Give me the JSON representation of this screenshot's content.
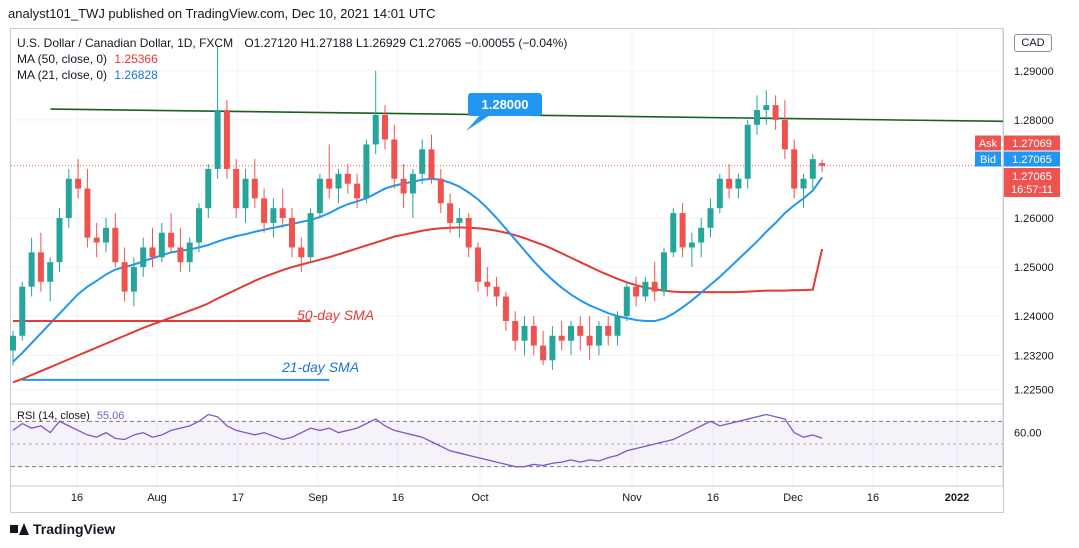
{
  "header": {
    "publisher_line": "analyst101_TWJ published on TradingView.com, Dec 10, 2021 14:01 UTC"
  },
  "legend": {
    "symbol": "U.S. Dollar / Canadian Dollar, 1D, FXCM",
    "ohlc": "O1.27120  H1.27188  L1.26929  C1.27065  −0.00055 (−0.04%)",
    "ma50_label": "MA (50, close, 0)",
    "ma50_value": "1.25366",
    "ma21_label": "MA (21, close, 0)",
    "ma21_value": "1.26828",
    "rsi_label": "RSI (14, close)",
    "rsi_value": "55.06"
  },
  "annotations": {
    "callout": "1.28000",
    "sma50": "50-day SMA",
    "sma21": "21-day SMA"
  },
  "price_axis": {
    "currency": "CAD",
    "ticks": [
      "1.29000",
      "1.28000",
      "1.26000",
      "1.25000",
      "1.24000",
      "1.23200",
      "1.22500"
    ],
    "ask_label": "Ask",
    "ask_value": "1.27069",
    "bid_label": "Bid",
    "bid_value": "1.27065",
    "last_value": "1.27065",
    "countdown": "16:57:11"
  },
  "rsi_axis": {
    "ticks": [
      "60.00"
    ]
  },
  "time_axis": {
    "ticks": [
      "16",
      "Aug",
      "17",
      "Sep",
      "16",
      "Oct",
      "Nov",
      "16",
      "Dec",
      "16",
      "2022"
    ]
  },
  "footer": {
    "brand": "TradingView"
  },
  "colors": {
    "up": "#26a69a",
    "down": "#ef5350",
    "ma50": "#e53935",
    "ma21": "#2196f3",
    "trendline": "#1b5e20",
    "rsi": "#7e57c2",
    "callout_bg": "#2196f3",
    "badge_blue": "#2196f3",
    "badge_red": "#ef5350"
  },
  "chart_data": {
    "type": "candlestick",
    "title": "U.S. Dollar / Canadian Dollar, 1D, FXCM",
    "price_range": [
      1.2225,
      1.2975
    ],
    "rsi_range": [
      20,
      80
    ],
    "candles": [
      {
        "o": 1.233,
        "h": 1.237,
        "l": 1.23,
        "c": 1.236
      },
      {
        "o": 1.236,
        "h": 1.247,
        "l": 1.235,
        "c": 1.246
      },
      {
        "o": 1.246,
        "h": 1.256,
        "l": 1.244,
        "c": 1.253
      },
      {
        "o": 1.253,
        "h": 1.257,
        "l": 1.245,
        "c": 1.247
      },
      {
        "o": 1.247,
        "h": 1.252,
        "l": 1.243,
        "c": 1.251
      },
      {
        "o": 1.251,
        "h": 1.262,
        "l": 1.249,
        "c": 1.26
      },
      {
        "o": 1.26,
        "h": 1.27,
        "l": 1.258,
        "c": 1.268
      },
      {
        "o": 1.268,
        "h": 1.272,
        "l": 1.264,
        "c": 1.266
      },
      {
        "o": 1.266,
        "h": 1.27,
        "l": 1.254,
        "c": 1.256
      },
      {
        "o": 1.256,
        "h": 1.259,
        "l": 1.252,
        "c": 1.255
      },
      {
        "o": 1.255,
        "h": 1.26,
        "l": 1.253,
        "c": 1.258
      },
      {
        "o": 1.258,
        "h": 1.261,
        "l": 1.25,
        "c": 1.251
      },
      {
        "o": 1.251,
        "h": 1.254,
        "l": 1.243,
        "c": 1.245
      },
      {
        "o": 1.245,
        "h": 1.252,
        "l": 1.242,
        "c": 1.25
      },
      {
        "o": 1.25,
        "h": 1.256,
        "l": 1.248,
        "c": 1.254
      },
      {
        "o": 1.254,
        "h": 1.258,
        "l": 1.25,
        "c": 1.252
      },
      {
        "o": 1.252,
        "h": 1.259,
        "l": 1.251,
        "c": 1.257
      },
      {
        "o": 1.257,
        "h": 1.261,
        "l": 1.253,
        "c": 1.254
      },
      {
        "o": 1.254,
        "h": 1.258,
        "l": 1.249,
        "c": 1.251
      },
      {
        "o": 1.251,
        "h": 1.256,
        "l": 1.249,
        "c": 1.255
      },
      {
        "o": 1.255,
        "h": 1.263,
        "l": 1.253,
        "c": 1.262
      },
      {
        "o": 1.262,
        "h": 1.271,
        "l": 1.26,
        "c": 1.27
      },
      {
        "o": 1.27,
        "h": 1.295,
        "l": 1.268,
        "c": 1.282
      },
      {
        "o": 1.282,
        "h": 1.284,
        "l": 1.268,
        "c": 1.27
      },
      {
        "o": 1.27,
        "h": 1.272,
        "l": 1.26,
        "c": 1.262
      },
      {
        "o": 1.262,
        "h": 1.27,
        "l": 1.259,
        "c": 1.268
      },
      {
        "o": 1.268,
        "h": 1.272,
        "l": 1.262,
        "c": 1.264
      },
      {
        "o": 1.264,
        "h": 1.266,
        "l": 1.257,
        "c": 1.259
      },
      {
        "o": 1.259,
        "h": 1.264,
        "l": 1.256,
        "c": 1.262
      },
      {
        "o": 1.262,
        "h": 1.266,
        "l": 1.258,
        "c": 1.26
      },
      {
        "o": 1.26,
        "h": 1.262,
        "l": 1.252,
        "c": 1.254
      },
      {
        "o": 1.254,
        "h": 1.256,
        "l": 1.249,
        "c": 1.252
      },
      {
        "o": 1.252,
        "h": 1.262,
        "l": 1.251,
        "c": 1.261
      },
      {
        "o": 1.261,
        "h": 1.269,
        "l": 1.26,
        "c": 1.268
      },
      {
        "o": 1.268,
        "h": 1.275,
        "l": 1.264,
        "c": 1.266
      },
      {
        "o": 1.266,
        "h": 1.27,
        "l": 1.263,
        "c": 1.269
      },
      {
        "o": 1.269,
        "h": 1.271,
        "l": 1.265,
        "c": 1.267
      },
      {
        "o": 1.267,
        "h": 1.269,
        "l": 1.262,
        "c": 1.264
      },
      {
        "o": 1.264,
        "h": 1.276,
        "l": 1.263,
        "c": 1.275
      },
      {
        "o": 1.275,
        "h": 1.29,
        "l": 1.273,
        "c": 1.281
      },
      {
        "o": 1.281,
        "h": 1.283,
        "l": 1.274,
        "c": 1.276
      },
      {
        "o": 1.276,
        "h": 1.279,
        "l": 1.266,
        "c": 1.268
      },
      {
        "o": 1.268,
        "h": 1.271,
        "l": 1.262,
        "c": 1.265
      },
      {
        "o": 1.265,
        "h": 1.27,
        "l": 1.26,
        "c": 1.269
      },
      {
        "o": 1.269,
        "h": 1.276,
        "l": 1.267,
        "c": 1.274
      },
      {
        "o": 1.274,
        "h": 1.277,
        "l": 1.267,
        "c": 1.268
      },
      {
        "o": 1.268,
        "h": 1.27,
        "l": 1.261,
        "c": 1.263
      },
      {
        "o": 1.263,
        "h": 1.265,
        "l": 1.257,
        "c": 1.259
      },
      {
        "o": 1.259,
        "h": 1.262,
        "l": 1.256,
        "c": 1.26
      },
      {
        "o": 1.26,
        "h": 1.261,
        "l": 1.252,
        "c": 1.254
      },
      {
        "o": 1.254,
        "h": 1.255,
        "l": 1.245,
        "c": 1.247
      },
      {
        "o": 1.247,
        "h": 1.25,
        "l": 1.244,
        "c": 1.246
      },
      {
        "o": 1.246,
        "h": 1.248,
        "l": 1.242,
        "c": 1.244
      },
      {
        "o": 1.244,
        "h": 1.245,
        "l": 1.237,
        "c": 1.239
      },
      {
        "o": 1.239,
        "h": 1.241,
        "l": 1.233,
        "c": 1.235
      },
      {
        "o": 1.235,
        "h": 1.24,
        "l": 1.232,
        "c": 1.238
      },
      {
        "o": 1.238,
        "h": 1.24,
        "l": 1.232,
        "c": 1.234
      },
      {
        "o": 1.234,
        "h": 1.237,
        "l": 1.23,
        "c": 1.231
      },
      {
        "o": 1.231,
        "h": 1.238,
        "l": 1.229,
        "c": 1.236
      },
      {
        "o": 1.236,
        "h": 1.239,
        "l": 1.233,
        "c": 1.235
      },
      {
        "o": 1.235,
        "h": 1.239,
        "l": 1.232,
        "c": 1.238
      },
      {
        "o": 1.238,
        "h": 1.24,
        "l": 1.233,
        "c": 1.236
      },
      {
        "o": 1.236,
        "h": 1.24,
        "l": 1.231,
        "c": 1.234
      },
      {
        "o": 1.234,
        "h": 1.239,
        "l": 1.232,
        "c": 1.238
      },
      {
        "o": 1.238,
        "h": 1.24,
        "l": 1.234,
        "c": 1.236
      },
      {
        "o": 1.236,
        "h": 1.241,
        "l": 1.234,
        "c": 1.24
      },
      {
        "o": 1.24,
        "h": 1.247,
        "l": 1.239,
        "c": 1.246
      },
      {
        "o": 1.246,
        "h": 1.248,
        "l": 1.242,
        "c": 1.244
      },
      {
        "o": 1.244,
        "h": 1.248,
        "l": 1.243,
        "c": 1.247
      },
      {
        "o": 1.247,
        "h": 1.251,
        "l": 1.243,
        "c": 1.245
      },
      {
        "o": 1.245,
        "h": 1.254,
        "l": 1.244,
        "c": 1.253
      },
      {
        "o": 1.253,
        "h": 1.262,
        "l": 1.252,
        "c": 1.261
      },
      {
        "o": 1.261,
        "h": 1.263,
        "l": 1.252,
        "c": 1.254
      },
      {
        "o": 1.254,
        "h": 1.257,
        "l": 1.25,
        "c": 1.255
      },
      {
        "o": 1.255,
        "h": 1.26,
        "l": 1.252,
        "c": 1.258
      },
      {
        "o": 1.258,
        "h": 1.264,
        "l": 1.256,
        "c": 1.262
      },
      {
        "o": 1.262,
        "h": 1.269,
        "l": 1.261,
        "c": 1.268
      },
      {
        "o": 1.268,
        "h": 1.271,
        "l": 1.264,
        "c": 1.266
      },
      {
        "o": 1.266,
        "h": 1.269,
        "l": 1.264,
        "c": 1.268
      },
      {
        "o": 1.268,
        "h": 1.28,
        "l": 1.266,
        "c": 1.279
      },
      {
        "o": 1.279,
        "h": 1.285,
        "l": 1.277,
        "c": 1.282
      },
      {
        "o": 1.282,
        "h": 1.286,
        "l": 1.279,
        "c": 1.283
      },
      {
        "o": 1.283,
        "h": 1.285,
        "l": 1.278,
        "c": 1.28
      },
      {
        "o": 1.28,
        "h": 1.284,
        "l": 1.272,
        "c": 1.274
      },
      {
        "o": 1.274,
        "h": 1.276,
        "l": 1.264,
        "c": 1.266
      },
      {
        "o": 1.266,
        "h": 1.269,
        "l": 1.262,
        "c": 1.268
      },
      {
        "o": 1.268,
        "h": 1.273,
        "l": 1.266,
        "c": 1.272
      },
      {
        "o": 1.2712,
        "h": 1.2719,
        "l": 1.2693,
        "c": 1.27065
      }
    ],
    "ma50": [
      1.2265,
      1.2272,
      1.228,
      1.2288,
      1.2296,
      1.2304,
      1.2312,
      1.232,
      1.2328,
      1.2336,
      1.2344,
      1.2352,
      1.236,
      1.2368,
      1.2376,
      1.2383,
      1.239,
      1.2397,
      1.2404,
      1.2411,
      1.2418,
      1.2426,
      1.2436,
      1.2445,
      1.2454,
      1.2463,
      1.2472,
      1.248,
      1.2487,
      1.2494,
      1.25,
      1.2505,
      1.251,
      1.2515,
      1.252,
      1.2526,
      1.2532,
      1.2538,
      1.2544,
      1.255,
      1.2556,
      1.2562,
      1.2566,
      1.257,
      1.2574,
      1.2577,
      1.2579,
      1.258,
      1.2581,
      1.258,
      1.2579,
      1.2577,
      1.2574,
      1.257,
      1.2565,
      1.2559,
      1.2552,
      1.2545,
      1.2537,
      1.2528,
      1.2519,
      1.251,
      1.2501,
      1.2492,
      1.2484,
      1.2476,
      1.2469,
      1.2463,
      1.2458,
      1.2455,
      1.2452,
      1.245,
      1.2449,
      1.2449,
      1.2449,
      1.2449,
      1.2449,
      1.2449,
      1.2449,
      1.245,
      1.2451,
      1.2452,
      1.2452,
      1.2452,
      1.2453,
      1.2453,
      1.2454,
      1.25366
    ],
    "ma21": [
      1.2307,
      1.2325,
      1.2345,
      1.2365,
      1.2385,
      1.2405,
      1.2425,
      1.2445,
      1.246,
      1.2472,
      1.2485,
      1.2495,
      1.25,
      1.2505,
      1.2512,
      1.2518,
      1.2524,
      1.253,
      1.2533,
      1.2536,
      1.254,
      1.2545,
      1.2552,
      1.2558,
      1.2563,
      1.2567,
      1.2572,
      1.2576,
      1.258,
      1.2584,
      1.2588,
      1.2592,
      1.2596,
      1.2602,
      1.261,
      1.262,
      1.2628,
      1.2634,
      1.264,
      1.265,
      1.266,
      1.2666,
      1.267,
      1.2674,
      1.2678,
      1.268,
      1.2678,
      1.2672,
      1.2664,
      1.2652,
      1.2638,
      1.262,
      1.26,
      1.2578,
      1.2556,
      1.2534,
      1.2512,
      1.2492,
      1.2474,
      1.2458,
      1.2444,
      1.2432,
      1.2422,
      1.2414,
      1.2406,
      1.24,
      1.2396,
      1.2392,
      1.239,
      1.239,
      1.2395,
      1.2405,
      1.2418,
      1.2432,
      1.2448,
      1.2464,
      1.248,
      1.2498,
      1.2516,
      1.2534,
      1.2552,
      1.2572,
      1.259,
      1.261,
      1.2626,
      1.264,
      1.2656,
      1.26828
    ],
    "rsi": [
      62,
      68,
      64,
      66,
      60,
      70,
      66,
      62,
      58,
      56,
      60,
      55,
      54,
      58,
      60,
      56,
      58,
      62,
      64,
      66,
      70,
      76,
      74,
      66,
      62,
      60,
      58,
      60,
      57,
      54,
      56,
      60,
      64,
      62,
      64,
      60,
      62,
      64,
      68,
      72,
      66,
      62,
      60,
      58,
      56,
      52,
      48,
      44,
      42,
      40,
      38,
      36,
      34,
      32,
      30,
      30,
      32,
      31,
      33,
      34,
      36,
      34,
      36,
      35,
      38,
      40,
      44,
      46,
      48,
      50,
      52,
      54,
      58,
      62,
      66,
      70,
      66,
      68,
      70,
      72,
      74,
      76,
      74,
      72,
      60,
      56,
      58,
      55.06
    ],
    "trendline": {
      "label": "1.28000",
      "from_index": 5,
      "from_value": 1.2822,
      "to_index": 98,
      "to_value": 1.2797
    },
    "horizontal_lines": [
      {
        "from_index": 0,
        "to_index": 32,
        "value": 1.239,
        "color": "ma50"
      },
      {
        "from_index": 1,
        "to_index": 34,
        "value": 1.227,
        "color": "ma21"
      }
    ]
  }
}
